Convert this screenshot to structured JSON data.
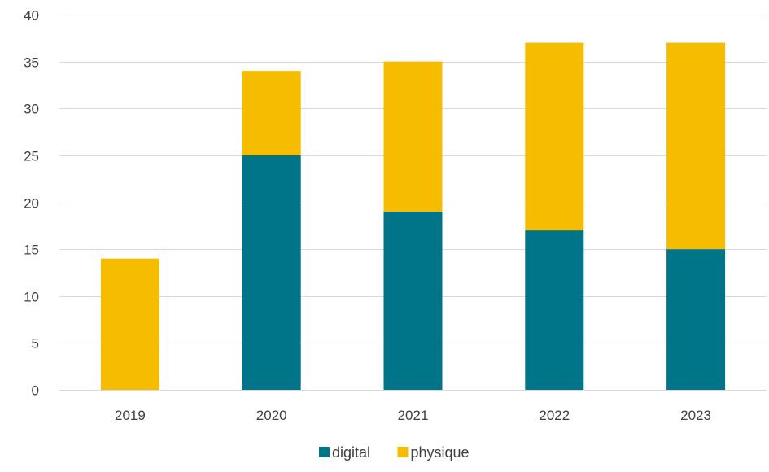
{
  "chart_data": {
    "type": "bar",
    "stacked": true,
    "categories": [
      "2019",
      "2020",
      "2021",
      "2022",
      "2023"
    ],
    "series": [
      {
        "name": "digital",
        "values": [
          0,
          25,
          19,
          17,
          15
        ],
        "color": "#00758A"
      },
      {
        "name": "physique",
        "values": [
          14,
          9,
          16,
          20,
          22
        ],
        "color": "#F6BC00"
      }
    ],
    "ylim": [
      0,
      40
    ],
    "yticks": [
      0,
      5,
      10,
      15,
      20,
      25,
      30,
      35,
      40
    ],
    "grid": true,
    "legend_position": "bottom",
    "title": "",
    "xlabel": "",
    "ylabel": ""
  }
}
